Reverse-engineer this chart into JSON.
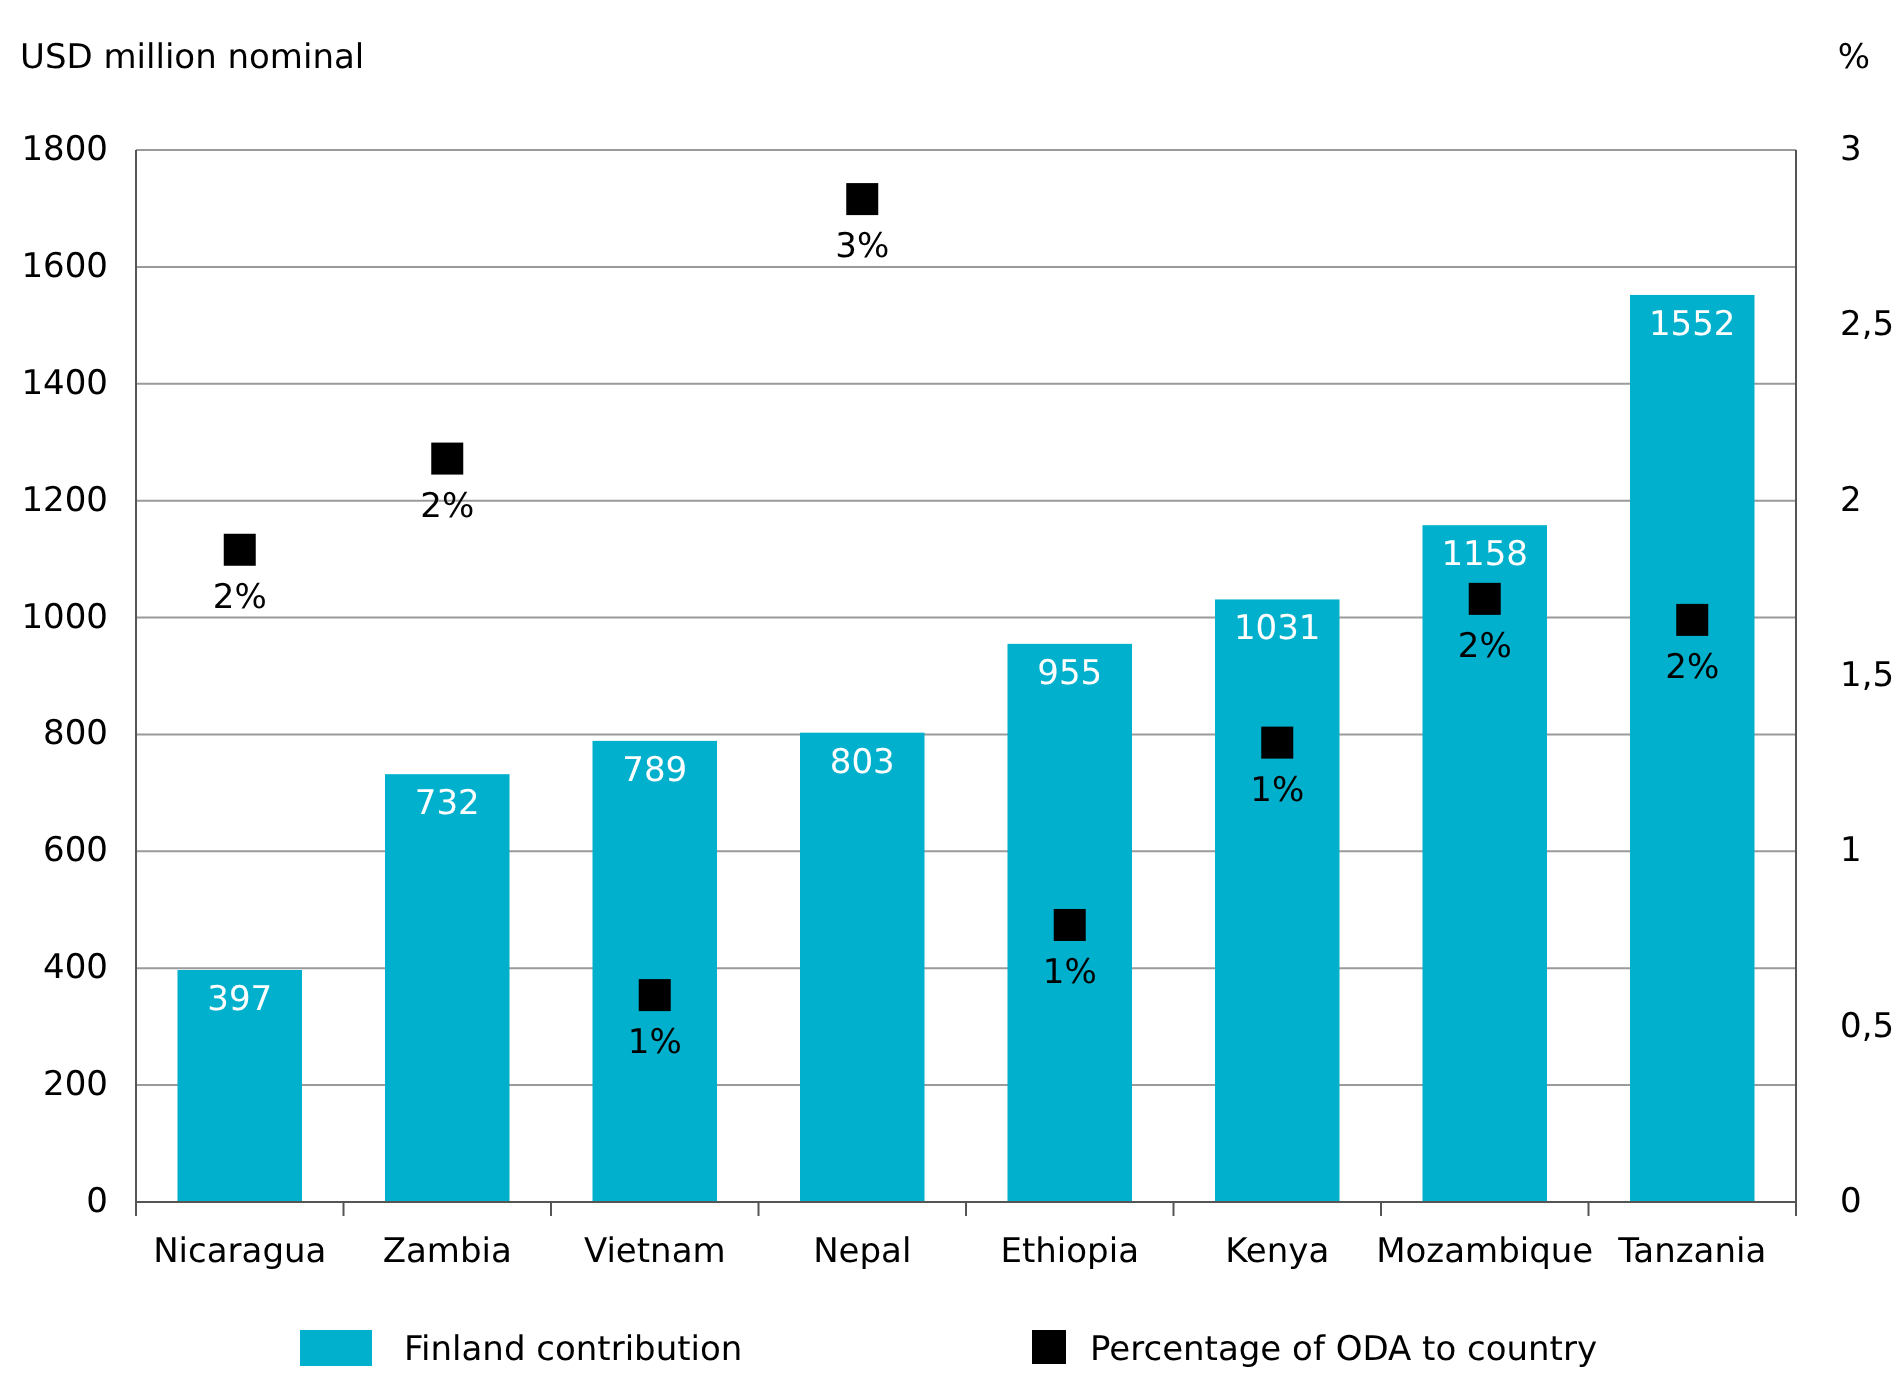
{
  "chart_data": {
    "type": "bar",
    "ylabel": "USD million nominal",
    "y2label": "%",
    "categories": [
      "Nicaragua",
      "Zambia",
      "Vietnam",
      "Nepal",
      "Ethiopia",
      "Kenya",
      "Mozambique",
      "Tanzania"
    ],
    "series": [
      {
        "name": "Finland contribution",
        "color": "#00b0cc",
        "values": [
          397,
          732,
          789,
          803,
          955,
          1031,
          1158,
          1552
        ],
        "data_labels": true
      },
      {
        "name": "Percentage of ODA to country",
        "type": "scatter",
        "axis": "y2",
        "color": "#000000",
        "marker": "square",
        "values": [
          1.86,
          2.12,
          0.59,
          2.86,
          0.79,
          1.31,
          1.72,
          1.66
        ],
        "value_labels": [
          "2%",
          "2%",
          "1%",
          "3%",
          "1%",
          "1%",
          "2%",
          "2%"
        ]
      }
    ],
    "ylim": [
      0,
      1800
    ],
    "yticks": [
      0,
      200,
      400,
      600,
      800,
      1000,
      1200,
      1400,
      1600,
      1800
    ],
    "y2lim": [
      0,
      3
    ],
    "y2ticks": [
      0,
      {
        "value": 0.5,
        "label": "0,5"
      },
      1,
      {
        "value": 1.5,
        "label": "1,5"
      },
      2,
      {
        "value": 2.5,
        "label": "2,5"
      },
      3
    ],
    "grid": "y",
    "legend": "bottom"
  }
}
